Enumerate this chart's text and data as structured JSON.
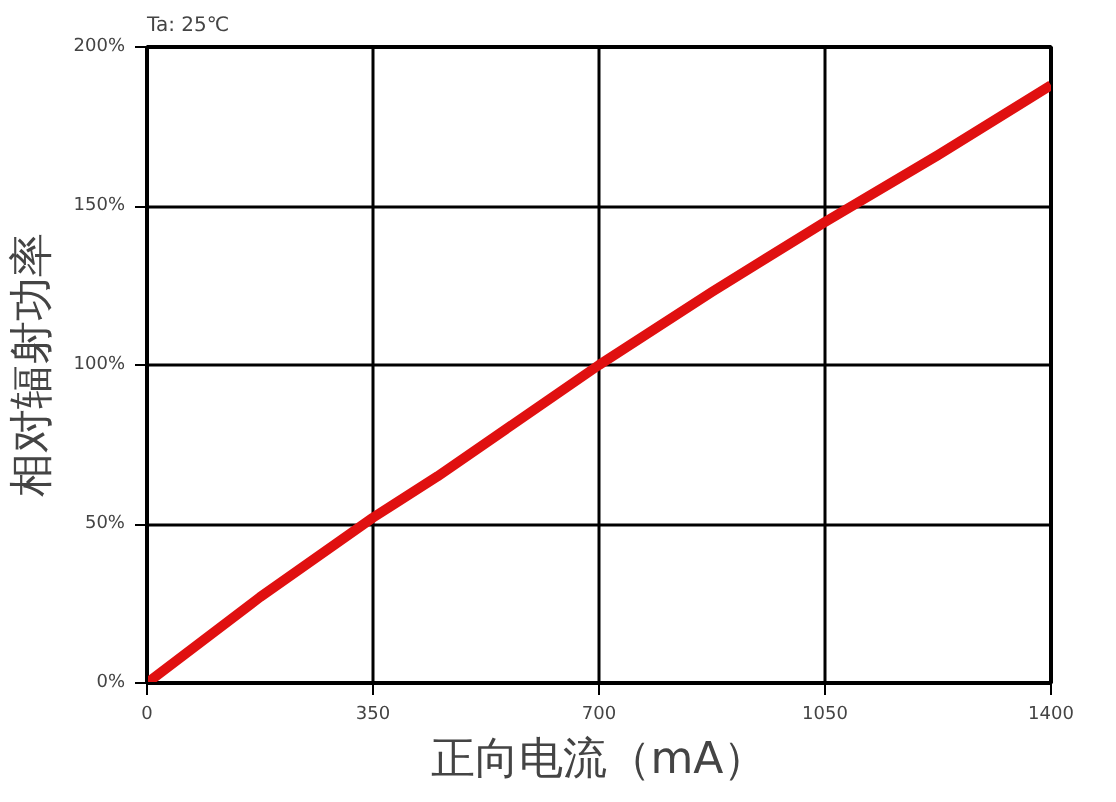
{
  "chart_data": {
    "type": "line",
    "title": "Ta: 25℃",
    "xlabel": "正向电流（mA）",
    "ylabel": "相对辐射功率",
    "x": [
      0,
      175,
      350,
      450,
      700,
      875,
      1050,
      1225,
      1400
    ],
    "series": [
      {
        "color": "#e01010",
        "values": [
          0,
          27,
          52,
          65,
          100,
          123,
          145,
          166,
          188
        ]
      }
    ],
    "xlim": [
      0,
      1400
    ],
    "xticks": [
      0,
      350,
      700,
      1050,
      1400
    ],
    "ylim": [
      0,
      200
    ],
    "yticks": [
      {
        "value": 0,
        "label": "0%"
      },
      {
        "value": 50,
        "label": "50%"
      },
      {
        "value": 100,
        "label": "100%"
      },
      {
        "value": 150,
        "label": "150%"
      },
      {
        "value": 200,
        "label": "200%"
      }
    ],
    "grid": true,
    "marker": "none",
    "line_style": "solid"
  }
}
